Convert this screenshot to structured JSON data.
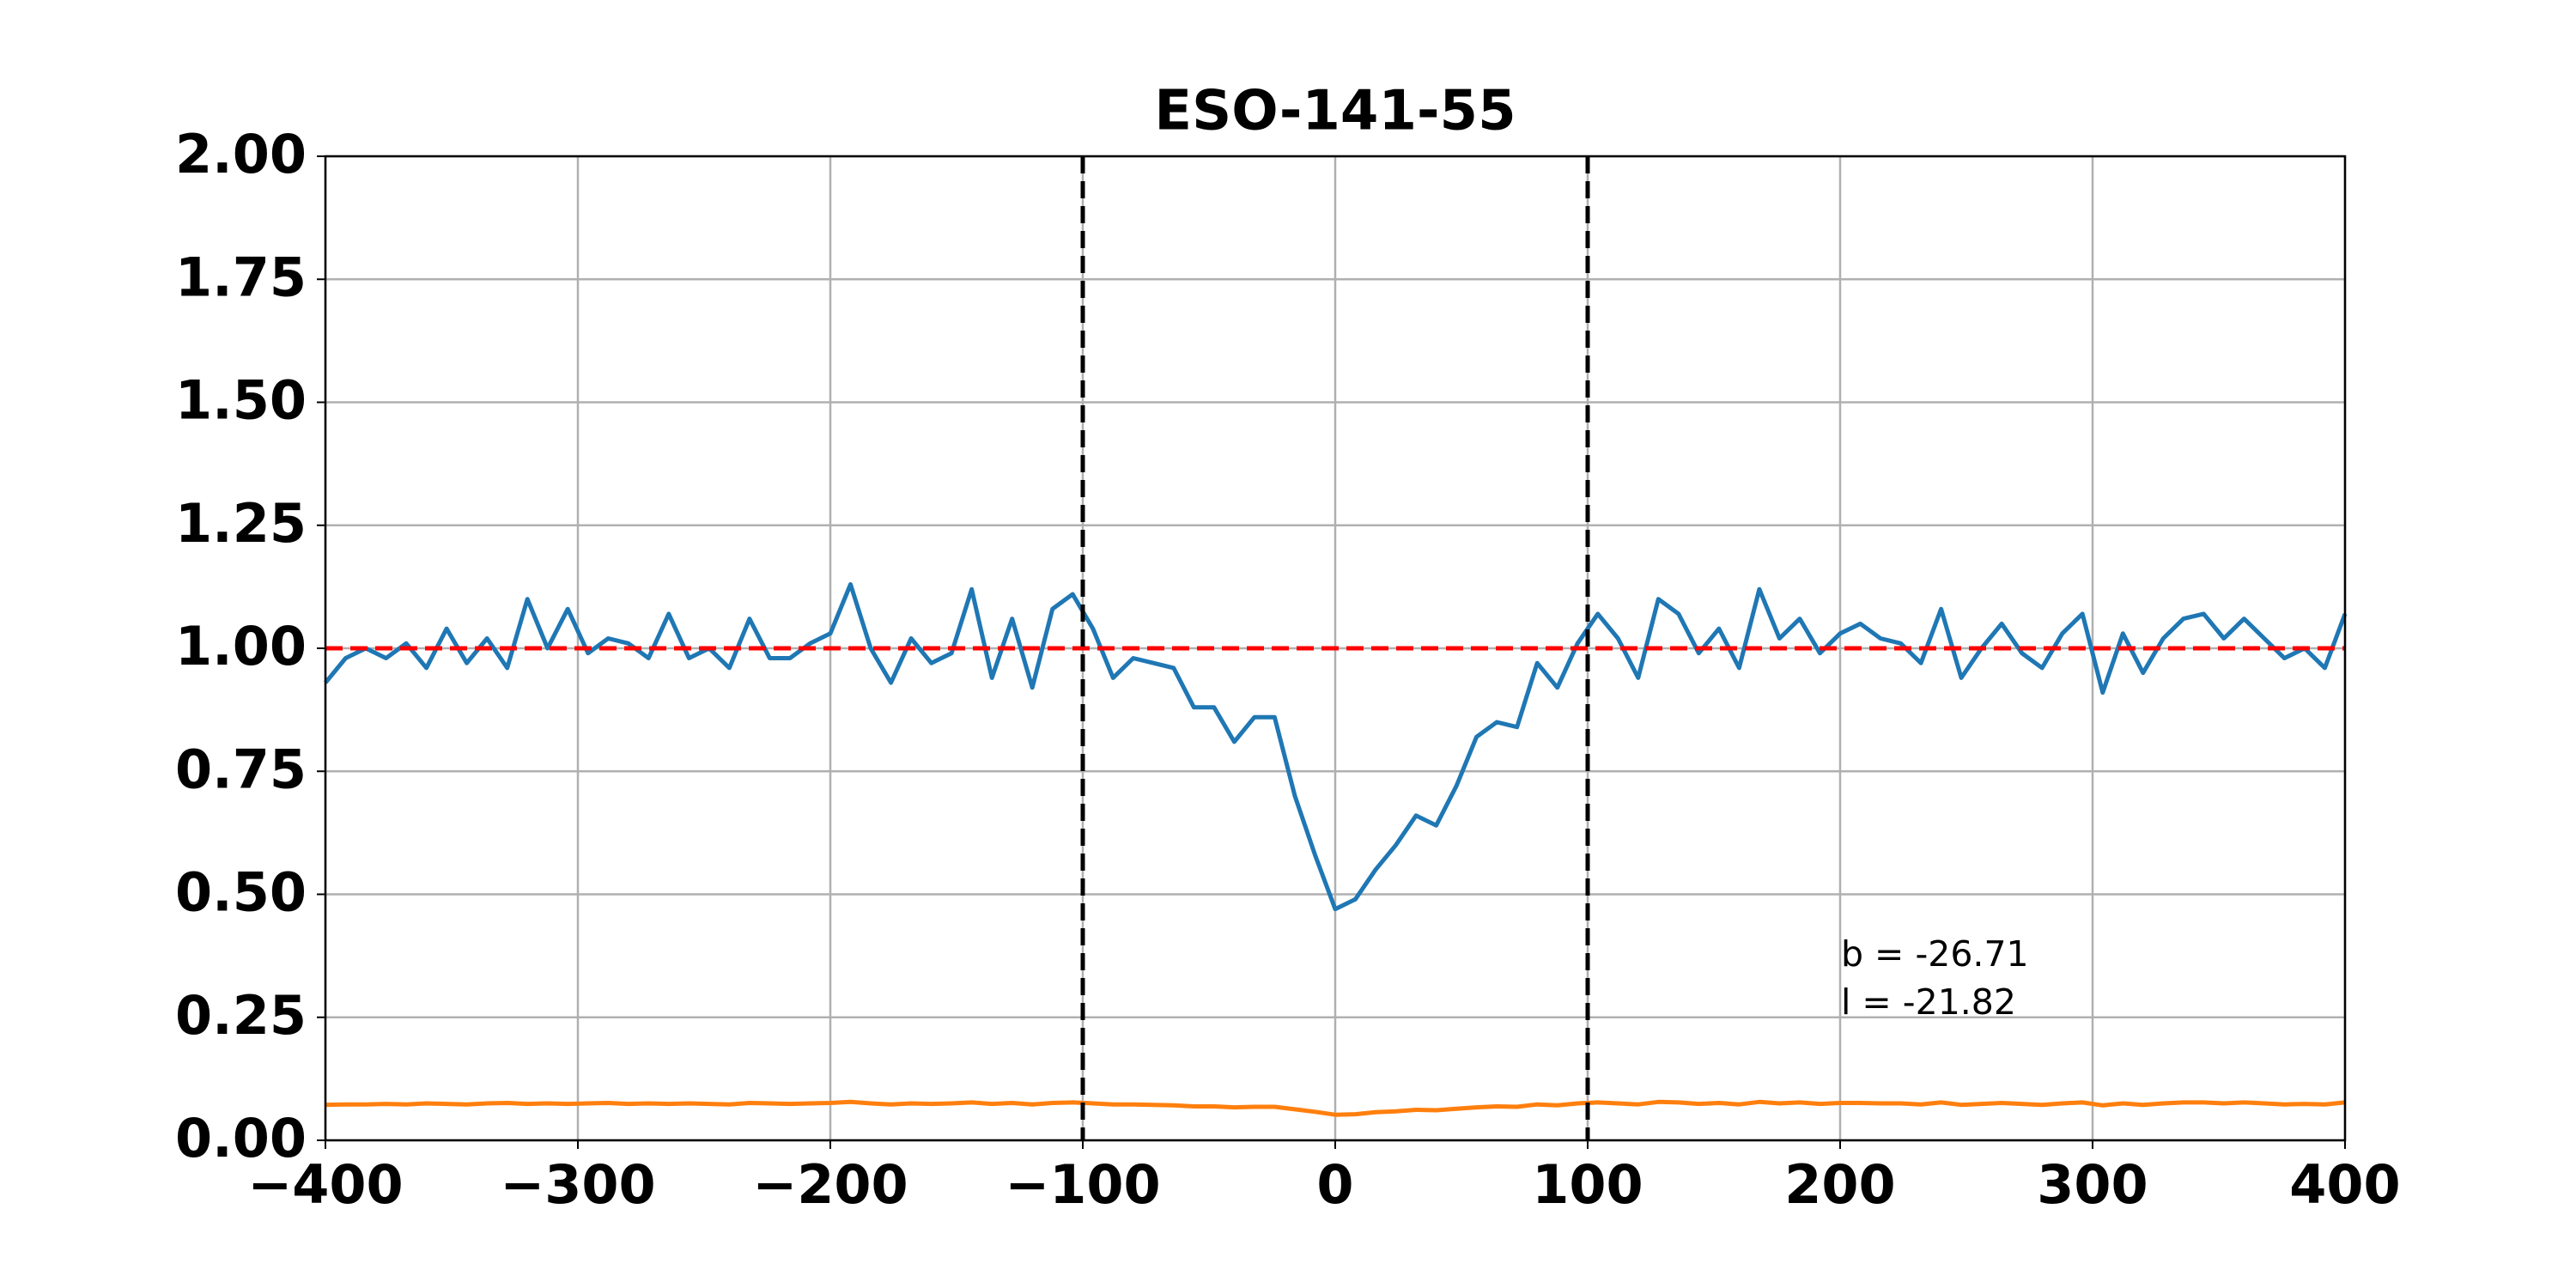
{
  "chart_data": {
    "type": "line",
    "title": "ESO-141-55",
    "x": [
      -400,
      -392,
      -384,
      -376,
      -368,
      -360,
      -352,
      -344,
      -336,
      -328,
      -320,
      -312,
      -304,
      -296,
      -288,
      -280,
      -272,
      -264,
      -256,
      -248,
      -240,
      -232,
      -224,
      -216,
      -208,
      -200,
      -192,
      -184,
      -176,
      -168,
      -160,
      -152,
      -144,
      -136,
      -128,
      -120,
      -112,
      -104,
      -96,
      -88,
      -80,
      -72,
      -64,
      -56,
      -48,
      -40,
      -32,
      -24,
      -16,
      -8,
      0,
      8,
      16,
      24,
      32,
      40,
      48,
      56,
      64,
      72,
      80,
      88,
      96,
      104,
      112,
      120,
      128,
      136,
      144,
      152,
      160,
      168,
      176,
      184,
      192,
      200,
      208,
      216,
      224,
      232,
      240,
      248,
      256,
      264,
      272,
      280,
      288,
      296,
      304,
      312,
      320,
      328,
      336,
      344,
      352,
      360,
      368,
      376,
      384,
      392,
      400
    ],
    "series": [
      {
        "color": "#1f77b4",
        "values": [
          0.93,
          0.98,
          1.0,
          0.98,
          1.01,
          0.96,
          1.04,
          0.97,
          1.02,
          0.96,
          1.1,
          1.0,
          1.08,
          0.99,
          1.02,
          1.01,
          0.98,
          1.07,
          0.98,
          1.0,
          0.96,
          1.06,
          0.98,
          0.98,
          1.01,
          1.03,
          1.13,
          1.0,
          0.93,
          1.02,
          0.97,
          0.99,
          1.12,
          0.94,
          1.06,
          0.92,
          1.08,
          1.11,
          1.04,
          0.94,
          0.98,
          0.97,
          0.96,
          0.88,
          0.88,
          0.81,
          0.86,
          0.86,
          0.7,
          0.58,
          0.47,
          0.49,
          0.55,
          0.6,
          0.66,
          0.64,
          0.72,
          0.82,
          0.85,
          0.84,
          0.97,
          0.92,
          1.01,
          1.07,
          1.02,
          0.94,
          1.1,
          1.07,
          0.99,
          1.04,
          0.96,
          1.12,
          1.02,
          1.06,
          0.99,
          1.03,
          1.05,
          1.02,
          1.01,
          0.97,
          1.08,
          0.94,
          1.0,
          1.05,
          0.99,
          0.96,
          1.03,
          1.07,
          0.91,
          1.03,
          0.95,
          1.02,
          1.06,
          1.07,
          1.02,
          1.06,
          1.02,
          0.98,
          1.0,
          0.96,
          1.07
        ]
      },
      {
        "color": "#ff7f0e",
        "values": [
          0.072,
          0.073,
          0.073,
          0.074,
          0.073,
          0.075,
          0.074,
          0.073,
          0.075,
          0.076,
          0.074,
          0.075,
          0.074,
          0.075,
          0.076,
          0.074,
          0.075,
          0.074,
          0.075,
          0.074,
          0.073,
          0.076,
          0.075,
          0.074,
          0.075,
          0.076,
          0.078,
          0.075,
          0.073,
          0.075,
          0.074,
          0.075,
          0.077,
          0.074,
          0.076,
          0.073,
          0.076,
          0.077,
          0.075,
          0.073,
          0.073,
          0.072,
          0.071,
          0.069,
          0.069,
          0.067,
          0.068,
          0.068,
          0.063,
          0.058,
          0.052,
          0.053,
          0.057,
          0.059,
          0.062,
          0.061,
          0.064,
          0.067,
          0.069,
          0.068,
          0.073,
          0.071,
          0.075,
          0.077,
          0.075,
          0.073,
          0.078,
          0.077,
          0.074,
          0.076,
          0.073,
          0.078,
          0.075,
          0.077,
          0.074,
          0.076,
          0.076,
          0.075,
          0.075,
          0.073,
          0.077,
          0.072,
          0.074,
          0.076,
          0.074,
          0.072,
          0.075,
          0.077,
          0.071,
          0.075,
          0.072,
          0.075,
          0.077,
          0.077,
          0.075,
          0.077,
          0.075,
          0.073,
          0.074,
          0.073,
          0.077
        ]
      }
    ],
    "hlines": [
      {
        "value": 1.0,
        "color": "#ff0000"
      }
    ],
    "vlines": [
      {
        "value": -100,
        "color": "#000000"
      },
      {
        "value": 100,
        "color": "#000000"
      }
    ],
    "annotations": [
      "b = -26.71",
      "l = -21.82"
    ],
    "xlim": [
      -400,
      400
    ],
    "ylim": [
      0,
      2
    ],
    "xticks": [
      {
        "value": -400,
        "label": "−400"
      },
      {
        "value": -300,
        "label": "−300"
      },
      {
        "value": -200,
        "label": "−200"
      },
      {
        "value": -100,
        "label": "−100"
      },
      0,
      100,
      200,
      300,
      400
    ],
    "yticks": [
      {
        "value": 0,
        "label": "0.00"
      },
      {
        "value": 0.25,
        "label": "0.25"
      },
      {
        "value": 0.5,
        "label": "0.50"
      },
      {
        "value": 0.75,
        "label": "0.75"
      },
      {
        "value": 1,
        "label": "1.00"
      },
      {
        "value": 1.25,
        "label": "1.25"
      },
      {
        "value": 1.5,
        "label": "1.50"
      },
      {
        "value": 1.75,
        "label": "1.75"
      },
      {
        "value": 2,
        "label": "2.00"
      }
    ],
    "grid": true
  }
}
